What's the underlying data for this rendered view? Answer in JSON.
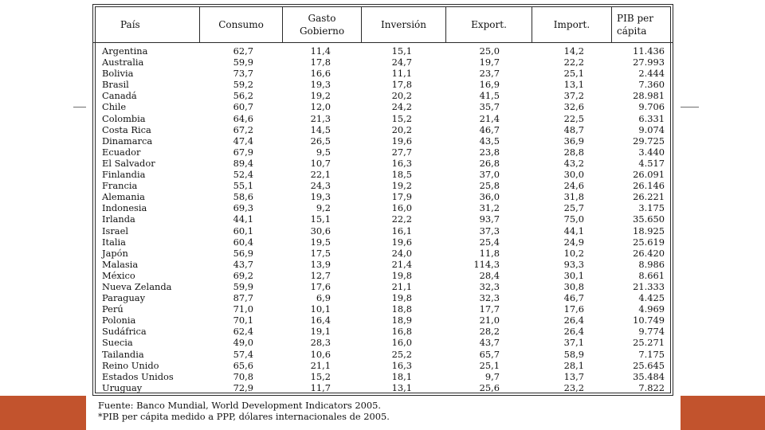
{
  "table": {
    "headers": [
      "País",
      "Consumo",
      "Gasto\nGobierno",
      "Inversión",
      "Export.",
      "Import.",
      "PIB per\ncápita"
    ],
    "rows": [
      [
        "Argentina",
        "62,7",
        "11,4",
        "15,1",
        "25,0",
        "14,2",
        "11.436"
      ],
      [
        "Australia",
        "59,9",
        "17,8",
        "24,7",
        "19,7",
        "22,2",
        "27.993"
      ],
      [
        "Bolivia",
        "73,7",
        "16,6",
        "11,1",
        "23,7",
        "25,1",
        "2.444"
      ],
      [
        "Brasil",
        "59,2",
        "19,3",
        "17,8",
        "16,9",
        "13,1",
        "7.360"
      ],
      [
        "Canadá",
        "56,2",
        "19,2",
        "20,2",
        "41,5",
        "37,2",
        "28.981"
      ],
      [
        "Chile",
        "60,7",
        "12,0",
        "24,2",
        "35,7",
        "32,6",
        "9.706"
      ],
      [
        "Colombia",
        "64,6",
        "21,3",
        "15,2",
        "21,4",
        "22,5",
        "6.331"
      ],
      [
        "Costa Rica",
        "67,2",
        "14,5",
        "20,2",
        "46,7",
        "48,7",
        "9.074"
      ],
      [
        "Dinamarca",
        "47,4",
        "26,5",
        "19,6",
        "43,5",
        "36,9",
        "29.725"
      ],
      [
        "Ecuador",
        "67,9",
        "9,5",
        "27,7",
        "23,8",
        "28,8",
        "3.440"
      ],
      [
        "El Salvador",
        "89,4",
        "10,7",
        "16,3",
        "26,8",
        "43,2",
        "4.517"
      ],
      [
        "Finlandia",
        "52,4",
        "22,1",
        "18,5",
        "37,0",
        "30,0",
        "26.091"
      ],
      [
        "Francia",
        "55,1",
        "24,3",
        "19,2",
        "25,8",
        "24,6",
        "26.146"
      ],
      [
        "Alemania",
        "58,6",
        "19,3",
        "17,9",
        "36,0",
        "31,8",
        "26.221"
      ],
      [
        "Indonesia",
        "69,3",
        "9,2",
        "16,0",
        "31,2",
        "25,7",
        "3.175"
      ],
      [
        "Irlanda",
        "44,1",
        "15,1",
        "22,2",
        "93,7",
        "75,0",
        "35.650"
      ],
      [
        "Israel",
        "60,1",
        "30,6",
        "16,1",
        "37,3",
        "44,1",
        "18.925"
      ],
      [
        "Italia",
        "60,4",
        "19,5",
        "19,6",
        "25,4",
        "24,9",
        "25.619"
      ],
      [
        "Japón",
        "56,9",
        "17,5",
        "24,0",
        "11,8",
        "10,2",
        "26.420"
      ],
      [
        "Malasia",
        "43,7",
        "13,9",
        "21,4",
        "114,3",
        "93,3",
        "8.986"
      ],
      [
        "México",
        "69,2",
        "12,7",
        "19,8",
        "28,4",
        "30,1",
        "8.661"
      ],
      [
        "Nueva Zelanda",
        "59,9",
        "17,6",
        "21,1",
        "32,3",
        "30,8",
        "21.333"
      ],
      [
        "Paraguay",
        "87,7",
        "6,9",
        "19,8",
        "32,3",
        "46,7",
        "4.425"
      ],
      [
        "Perú",
        "71,0",
        "10,1",
        "18,8",
        "17,7",
        "17,6",
        "4.969"
      ],
      [
        "Polonia",
        "70,1",
        "16,4",
        "18,9",
        "21,0",
        "26,4",
        "10.749"
      ],
      [
        "Sudáfrica",
        "62,4",
        "19,1",
        "16,8",
        "28,2",
        "26,4",
        "9.774"
      ],
      [
        "Suecia",
        "49,0",
        "28,3",
        "16,0",
        "43,7",
        "37,1",
        "25.271"
      ],
      [
        "Tailandia",
        "57,4",
        "10,6",
        "25,2",
        "65,7",
        "58,9",
        "7.175"
      ],
      [
        "Reino Unido",
        "65,6",
        "21,1",
        "16,3",
        "25,1",
        "28,1",
        "25.645"
      ],
      [
        "Estados Unidos",
        "70,8",
        "15,2",
        "18,1",
        "9,7",
        "13,7",
        "35.484"
      ],
      [
        "Uruguay",
        "72,9",
        "11,7",
        "13,1",
        "25,6",
        "23,2",
        "7.822"
      ]
    ]
  },
  "notes": {
    "line1": "Fuente: Banco Mundial, World Development Indicators 2005.",
    "line2": "*PIB per cápita medido a PPP, dólares internacionales de 2005."
  },
  "colors": {
    "accent_bar": "#c2532d",
    "rule": "#2a2a2a",
    "text": "#111111"
  }
}
